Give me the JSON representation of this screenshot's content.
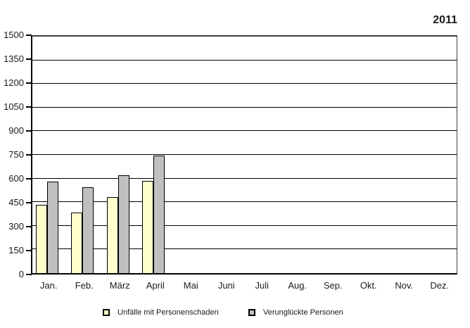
{
  "title": "2011",
  "chart_data": {
    "type": "bar",
    "title": "2011",
    "xlabel": "",
    "ylabel": "",
    "categories": [
      "Jan.",
      "Feb.",
      "März",
      "April",
      "Mai",
      "Juni",
      "Juli",
      "Aug.",
      "Sep.",
      "Okt.",
      "Nov.",
      "Dez."
    ],
    "series": [
      {
        "name": "Unfälle mit Personenschaden",
        "color": "#FFFFCC",
        "values": [
          430,
          380,
          475,
          580,
          null,
          null,
          null,
          null,
          null,
          null,
          null,
          null
        ]
      },
      {
        "name": "Verunglückte Personen",
        "color": "#C0C0C0",
        "values": [
          575,
          540,
          615,
          735,
          null,
          null,
          null,
          null,
          null,
          null,
          null,
          null
        ]
      }
    ],
    "ylim": [
      0,
      1500
    ],
    "ytick_step": 150,
    "ytick_labels": [
      "0",
      "150",
      "300",
      "450",
      "600",
      "750",
      "900",
      "1050",
      "1200",
      "1350",
      "1500"
    ],
    "grid": true,
    "legend_position": "bottom"
  },
  "legend": {
    "items": [
      {
        "label": "Unfälle mit Personenschaden",
        "color": "#FFFFCC"
      },
      {
        "label": "Verunglückte Personen",
        "color": "#C0C0C0"
      }
    ]
  }
}
